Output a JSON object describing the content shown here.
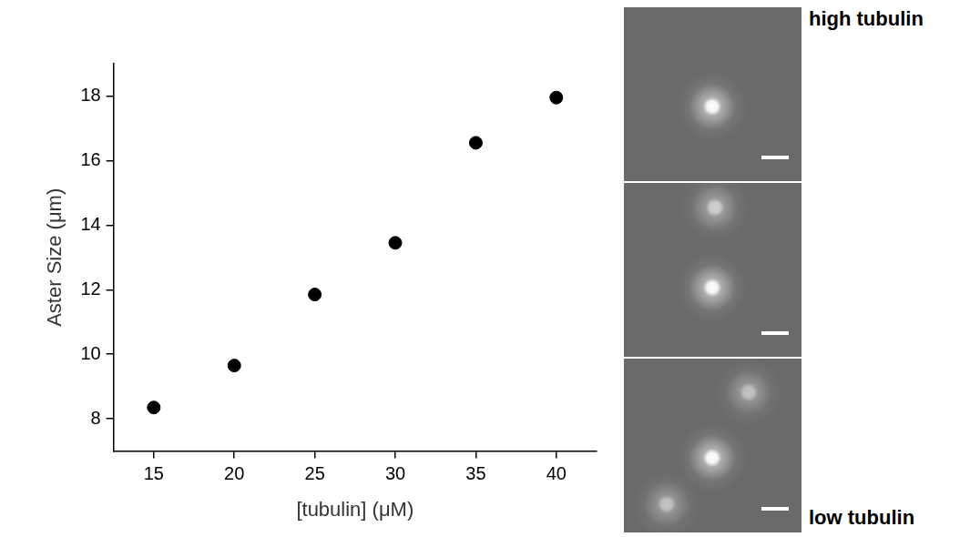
{
  "chart_data": {
    "type": "scatter",
    "x_label": "[tubulin] (μM)",
    "y_label": "Aster Size (μm)",
    "x": [
      15,
      20,
      25,
      30,
      35,
      40
    ],
    "values": [
      8.35,
      9.65,
      11.85,
      13.45,
      16.55,
      17.95
    ],
    "color": "#000000",
    "marker": "circle",
    "xlim": [
      12.5,
      42.5
    ],
    "xticks": [
      15,
      20,
      25,
      30,
      35,
      40
    ],
    "ylim": [
      7,
      19
    ],
    "yticks": [
      8,
      10,
      12,
      14,
      16,
      18
    ],
    "grid": false
  },
  "images": {
    "top_label": "high tubulin",
    "bottom_label": "low tubulin"
  }
}
